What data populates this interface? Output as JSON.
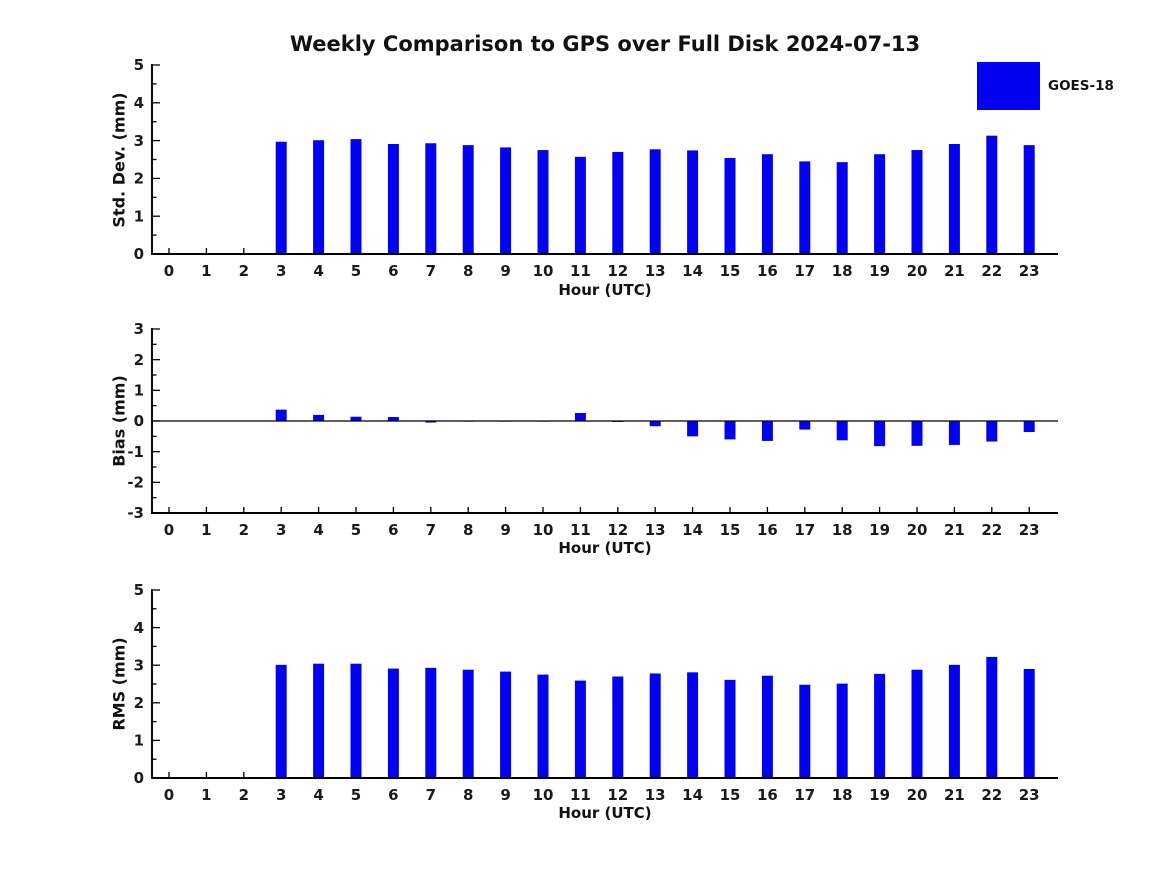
{
  "title": "Weekly Comparison to GPS over Full Disk 2024-07-13",
  "legend": {
    "label": "GOES-18",
    "color": "#0202ee"
  },
  "colors": {
    "bar": "#0202ee",
    "axis": "#000000",
    "text": "#1a1a1a",
    "background": "#ffffff"
  },
  "chart_data": [
    {
      "type": "bar",
      "title": "Weekly Comparison to GPS over Full Disk 2024-07-13",
      "ylabel": "Std. Dev. (mm)",
      "xlabel": "Hour (UTC)",
      "categories": [
        "0",
        "1",
        "2",
        "3",
        "4",
        "5",
        "6",
        "7",
        "8",
        "9",
        "10",
        "11",
        "12",
        "13",
        "14",
        "15",
        "16",
        "17",
        "18",
        "19",
        "20",
        "21",
        "22",
        "23"
      ],
      "values": [
        0,
        0,
        0,
        2.97,
        3.01,
        3.04,
        2.91,
        2.93,
        2.88,
        2.82,
        2.75,
        2.57,
        2.7,
        2.77,
        2.74,
        2.54,
        2.64,
        2.45,
        2.43,
        2.64,
        2.75,
        2.91,
        3.13,
        2.88
      ],
      "ylim": [
        0,
        5
      ],
      "yticks": [
        0,
        1,
        2,
        3,
        4,
        5
      ],
      "grid": false,
      "legend_entries": [
        "GOES-18"
      ],
      "legend_position": "upper right"
    },
    {
      "type": "bar",
      "title": "",
      "ylabel": "Bias (mm)",
      "xlabel": "Hour (UTC)",
      "categories": [
        "0",
        "1",
        "2",
        "3",
        "4",
        "5",
        "6",
        "7",
        "8",
        "9",
        "10",
        "11",
        "12",
        "13",
        "14",
        "15",
        "16",
        "17",
        "18",
        "19",
        "20",
        "21",
        "22",
        "23"
      ],
      "values": [
        0,
        0,
        0,
        0.37,
        0.2,
        0.14,
        0.13,
        -0.05,
        -0.02,
        -0.02,
        -0.02,
        0.26,
        -0.03,
        -0.17,
        -0.5,
        -0.6,
        -0.65,
        -0.28,
        -0.63,
        -0.82,
        -0.81,
        -0.78,
        -0.67,
        -0.36
      ],
      "ylim": [
        -3,
        3
      ],
      "yticks": [
        -3,
        -2,
        -1,
        0,
        1,
        2,
        3
      ],
      "zero_line": true,
      "grid": false
    },
    {
      "type": "bar",
      "title": "",
      "ylabel": "RMS (mm)",
      "xlabel": "Hour (UTC)",
      "categories": [
        "0",
        "1",
        "2",
        "3",
        "4",
        "5",
        "6",
        "7",
        "8",
        "9",
        "10",
        "11",
        "12",
        "13",
        "14",
        "15",
        "16",
        "17",
        "18",
        "19",
        "20",
        "21",
        "22",
        "23"
      ],
      "values": [
        0,
        0,
        0,
        3.01,
        3.04,
        3.04,
        2.91,
        2.93,
        2.88,
        2.83,
        2.75,
        2.59,
        2.7,
        2.78,
        2.81,
        2.61,
        2.72,
        2.48,
        2.51,
        2.77,
        2.88,
        3.01,
        3.22,
        2.9
      ],
      "ylim": [
        0,
        5
      ],
      "yticks": [
        0,
        1,
        2,
        3,
        4,
        5
      ],
      "grid": false
    }
  ]
}
